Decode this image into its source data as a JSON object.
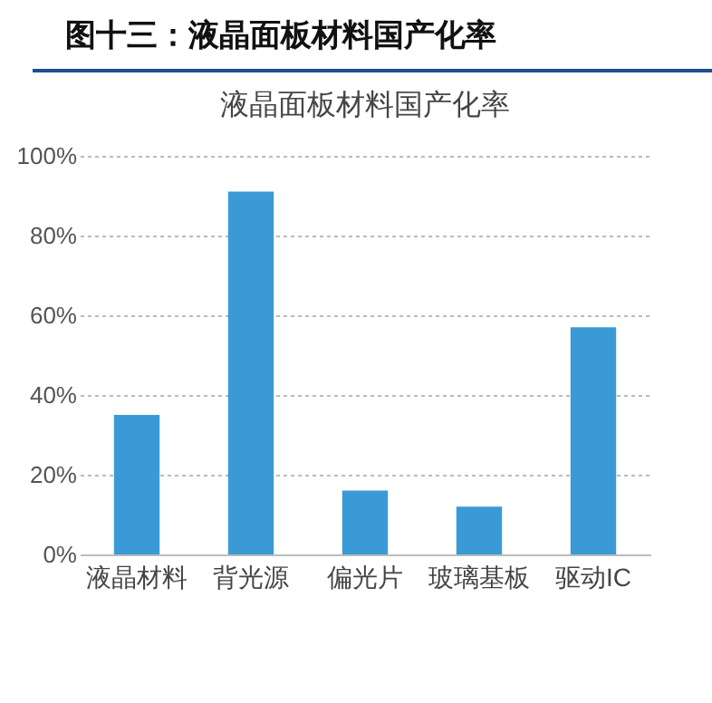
{
  "chart_data": {
    "type": "bar",
    "title": "图十三：液晶面板材料国产化率",
    "subtitle": "液晶面板材料国产化率",
    "categories": [
      "液晶材料",
      "背光源",
      "偏光片",
      "玻璃基板",
      "驱动IC"
    ],
    "values": [
      35,
      91,
      16,
      12,
      57
    ],
    "color": "#3a9ad6",
    "ylim": [
      0,
      100
    ],
    "yticks": [
      {
        "value": 0,
        "label": "0%"
      },
      {
        "value": 20,
        "label": "20%"
      },
      {
        "value": 40,
        "label": "40%"
      },
      {
        "value": 60,
        "label": "60%"
      },
      {
        "value": 80,
        "label": "80%"
      },
      {
        "value": 100,
        "label": "100%"
      }
    ],
    "grid": "y"
  }
}
